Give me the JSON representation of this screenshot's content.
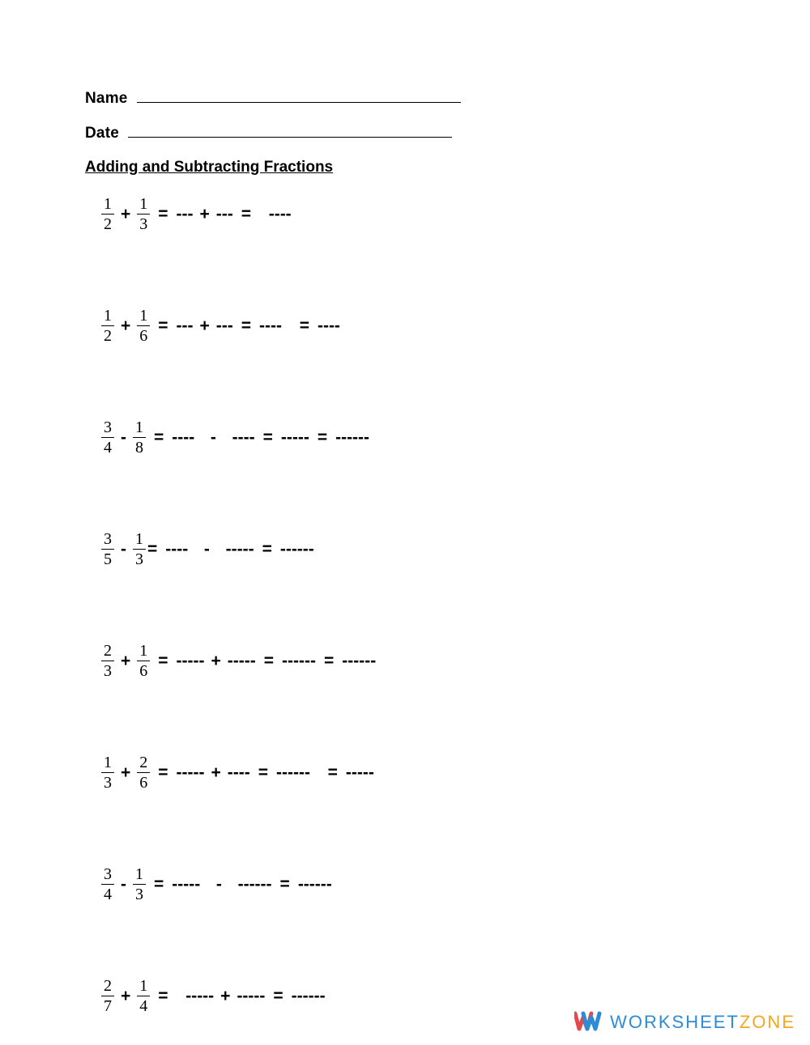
{
  "header": {
    "name_label": "Name",
    "date_label": "Date",
    "section_title": "Adding and Subtracting Fractions"
  },
  "problems": [
    {
      "f1": {
        "n": "1",
        "d": "2"
      },
      "op": "+",
      "f2": {
        "n": "1",
        "d": "3"
      },
      "tail": [
        {
          "t": "eq"
        },
        {
          "t": "blank",
          "n": 3
        },
        {
          "t": "op",
          "v": "+"
        },
        {
          "t": "blank",
          "n": 3
        },
        {
          "t": "eq"
        },
        {
          "t": "sp"
        },
        {
          "t": "blank",
          "n": 4
        }
      ]
    },
    {
      "f1": {
        "n": "1",
        "d": "2"
      },
      "op": "+",
      "f2": {
        "n": "1",
        "d": "6"
      },
      "tail": [
        {
          "t": "eq"
        },
        {
          "t": "blank",
          "n": 3
        },
        {
          "t": "op",
          "v": "+"
        },
        {
          "t": "blank",
          "n": 3
        },
        {
          "t": "eq"
        },
        {
          "t": "blank",
          "n": 4
        },
        {
          "t": "sp"
        },
        {
          "t": "eq"
        },
        {
          "t": "blank",
          "n": 4
        }
      ]
    },
    {
      "f1": {
        "n": "3",
        "d": "4"
      },
      "op": "-",
      "f2": {
        "n": "1",
        "d": "8"
      },
      "tail": [
        {
          "t": "eq"
        },
        {
          "t": "blank",
          "n": 4
        },
        {
          "t": "sp"
        },
        {
          "t": "op",
          "v": "-"
        },
        {
          "t": "sp"
        },
        {
          "t": "blank",
          "n": 4
        },
        {
          "t": "eq"
        },
        {
          "t": "blank",
          "n": 5
        },
        {
          "t": "eq"
        },
        {
          "t": "blank",
          "n": 6
        }
      ]
    },
    {
      "f1": {
        "n": "3",
        "d": "5"
      },
      "op": "-",
      "f2": {
        "n": "1",
        "d": "3"
      },
      "tight_eq": true,
      "tail": [
        {
          "t": "blank",
          "n": 4
        },
        {
          "t": "sp"
        },
        {
          "t": "op",
          "v": "-"
        },
        {
          "t": "sp"
        },
        {
          "t": "blank",
          "n": 5
        },
        {
          "t": "eq"
        },
        {
          "t": "blank",
          "n": 6
        }
      ]
    },
    {
      "f1": {
        "n": "2",
        "d": "3"
      },
      "op": "+",
      "f2": {
        "n": "1",
        "d": "6"
      },
      "tail": [
        {
          "t": "eq"
        },
        {
          "t": "blank",
          "n": 5
        },
        {
          "t": "op",
          "v": "+"
        },
        {
          "t": "blank",
          "n": 5
        },
        {
          "t": "eq"
        },
        {
          "t": "blank",
          "n": 6
        },
        {
          "t": "eq"
        },
        {
          "t": "blank",
          "n": 6
        }
      ]
    },
    {
      "f1": {
        "n": "1",
        "d": "3"
      },
      "op": "+",
      "f2": {
        "n": "2",
        "d": "6"
      },
      "tail": [
        {
          "t": "eq"
        },
        {
          "t": "blank",
          "n": 5
        },
        {
          "t": "op",
          "v": "+"
        },
        {
          "t": "blank",
          "n": 4
        },
        {
          "t": "eq"
        },
        {
          "t": "blank",
          "n": 6
        },
        {
          "t": "sp"
        },
        {
          "t": "eq"
        },
        {
          "t": "blank",
          "n": 5
        }
      ]
    },
    {
      "f1": {
        "n": "3",
        "d": "4"
      },
      "op": "-",
      "f2": {
        "n": "1",
        "d": "3"
      },
      "tail": [
        {
          "t": "eq"
        },
        {
          "t": "blank",
          "n": 5
        },
        {
          "t": "sp"
        },
        {
          "t": "op",
          "v": "-"
        },
        {
          "t": "sp"
        },
        {
          "t": "blank",
          "n": 6
        },
        {
          "t": "eq"
        },
        {
          "t": "blank",
          "n": 6
        }
      ]
    },
    {
      "f1": {
        "n": "2",
        "d": "7"
      },
      "op": "+",
      "f2": {
        "n": "1",
        "d": "4"
      },
      "tail": [
        {
          "t": "eq"
        },
        {
          "t": "sp"
        },
        {
          "t": "blank",
          "n": 5
        },
        {
          "t": "op",
          "v": "+"
        },
        {
          "t": "blank",
          "n": 5
        },
        {
          "t": "eq"
        },
        {
          "t": "blank",
          "n": 6
        }
      ]
    }
  ],
  "watermark": {
    "text_a": "WORKSHEET",
    "text_b": "ZONE",
    "colors": {
      "blue": "#2e8bd6",
      "orange": "#f5a623",
      "red": "#e24b4b"
    }
  }
}
